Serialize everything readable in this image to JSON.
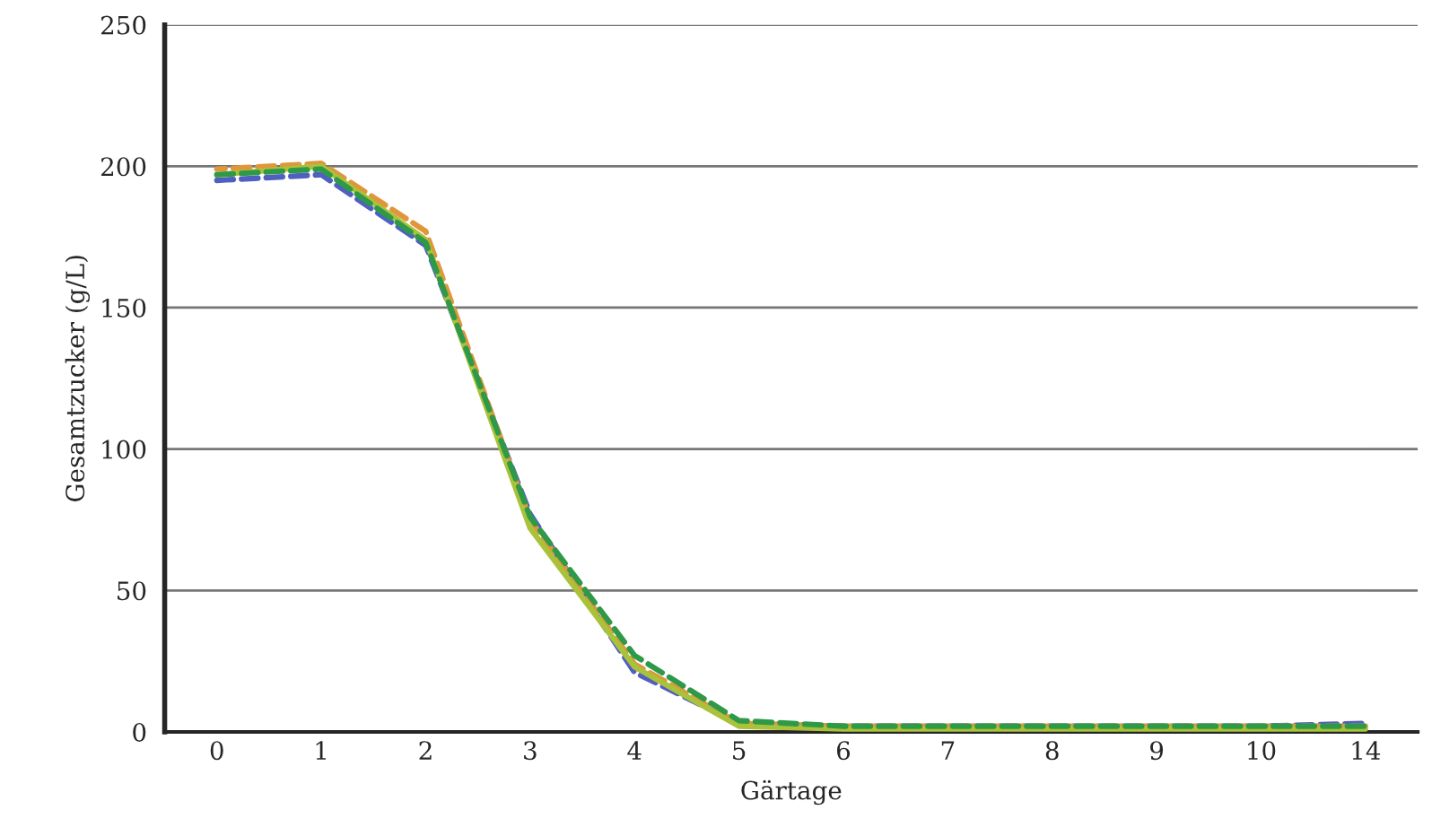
{
  "chart_data": {
    "type": "line",
    "xlabel": "Gärtage",
    "ylabel": "Gesamtzucker (g/L)",
    "categories": [
      "0",
      "1",
      "2",
      "3",
      "4",
      "5",
      "6",
      "7",
      "8",
      "9",
      "10",
      "14"
    ],
    "series": [
      {
        "color": "#5060c0",
        "line_style": "dashed",
        "values": [
          195,
          197,
          172,
          77,
          21,
          3,
          2,
          2,
          2,
          2,
          2,
          3
        ]
      },
      {
        "color": "#e0963a",
        "line_style": "dashed",
        "values": [
          199,
          201,
          177,
          75,
          24,
          3,
          2,
          2,
          2,
          2,
          2,
          2
        ]
      },
      {
        "color": "#a9c23a",
        "line_style": "solid",
        "values": [
          197,
          200,
          174,
          72,
          23,
          2,
          1,
          1,
          1,
          1,
          1,
          1
        ]
      },
      {
        "color": "#2e9a48",
        "line_style": "dashed",
        "values": [
          197,
          199,
          173,
          76,
          27,
          4,
          2,
          2,
          2,
          2,
          2,
          2
        ]
      }
    ],
    "ylim": [
      0,
      250
    ],
    "yticks": [
      0,
      50,
      100,
      150,
      200,
      250
    ],
    "grid": "y",
    "legend": false
  }
}
